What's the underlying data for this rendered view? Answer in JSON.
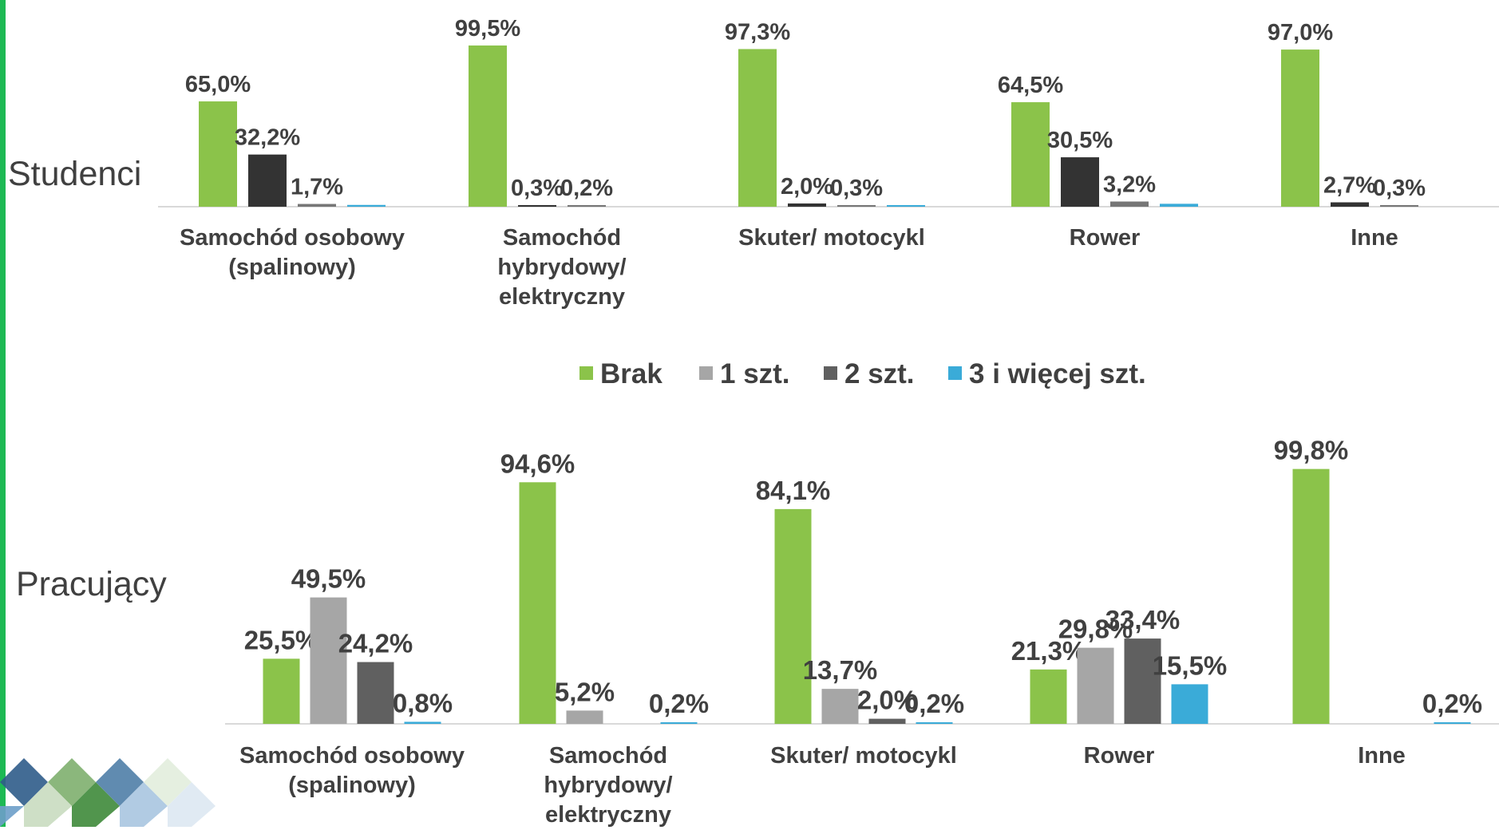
{
  "chart_data": [
    {
      "type": "bar",
      "title": "Studenci",
      "categories": [
        "Samochód osobowy\n(spalinowy)",
        "Samochód\nhybrydowy/\nelektryczny",
        "Skuter/ motocykl",
        "Rower",
        "Inne"
      ],
      "series": [
        {
          "name": "Brak",
          "color": "#8bc34a",
          "values": [
            65.0,
            99.5,
            97.3,
            64.5,
            97.0
          ],
          "value_labels": [
            "65,0%",
            "99,5%",
            "97,3%",
            "64,5%",
            "97,0%"
          ]
        },
        {
          "name": "1 szt.",
          "color": "#333333",
          "values": [
            32.2,
            0.3,
            2.0,
            30.5,
            2.7
          ],
          "value_labels": [
            "32,2%",
            "0,3%",
            "2,0%",
            "30,5%",
            "2,7%"
          ]
        },
        {
          "name": "2 szt.",
          "color": "#767676",
          "values": [
            1.7,
            0.2,
            0.3,
            3.2,
            0.3
          ],
          "value_labels": [
            "1,7%",
            "0,2%",
            "0,3%",
            "3,2%",
            "0,3%"
          ]
        },
        {
          "name": "3 i więcej szt.",
          "color": "#3aabd8",
          "values": [
            1.1,
            null,
            0.4,
            1.8,
            null
          ],
          "value_labels": [
            null,
            null,
            null,
            null,
            null
          ]
        }
      ],
      "ylim": [
        0,
        100
      ]
    },
    {
      "type": "bar",
      "title": "Pracujący",
      "categories": [
        "Samochód osobowy\n(spalinowy)",
        "Samochód\nhybrydowy/\nelektryczny",
        "Skuter/ motocykl",
        "Rower",
        "Inne"
      ],
      "series": [
        {
          "name": "Brak",
          "color": "#8bc34a",
          "values": [
            25.5,
            94.6,
            84.1,
            21.3,
            99.8
          ],
          "value_labels": [
            "25,5%",
            "94,6%",
            "84,1%",
            "21,3%",
            "99,8%"
          ]
        },
        {
          "name": "1 szt.",
          "color": "#a6a6a6",
          "values": [
            49.5,
            5.2,
            13.7,
            29.8,
            null
          ],
          "value_labels": [
            "49,5%",
            "5,2%",
            "13,7%",
            "29,8%",
            null
          ]
        },
        {
          "name": "2 szt.",
          "color": "#606060",
          "values": [
            24.2,
            null,
            2.0,
            33.4,
            null
          ],
          "value_labels": [
            "24,2%",
            null,
            "2,0%",
            "33,4%",
            null
          ]
        },
        {
          "name": "3 i więcej szt.",
          "color": "#3aabd8",
          "values": [
            0.8,
            0.2,
            0.2,
            15.5,
            0.2
          ],
          "value_labels": [
            "0,8%",
            "0,2%",
            "0,2%",
            "15,5%",
            "0,2%"
          ]
        }
      ],
      "ylim": [
        0,
        100
      ],
      "legend": "center"
    }
  ]
}
